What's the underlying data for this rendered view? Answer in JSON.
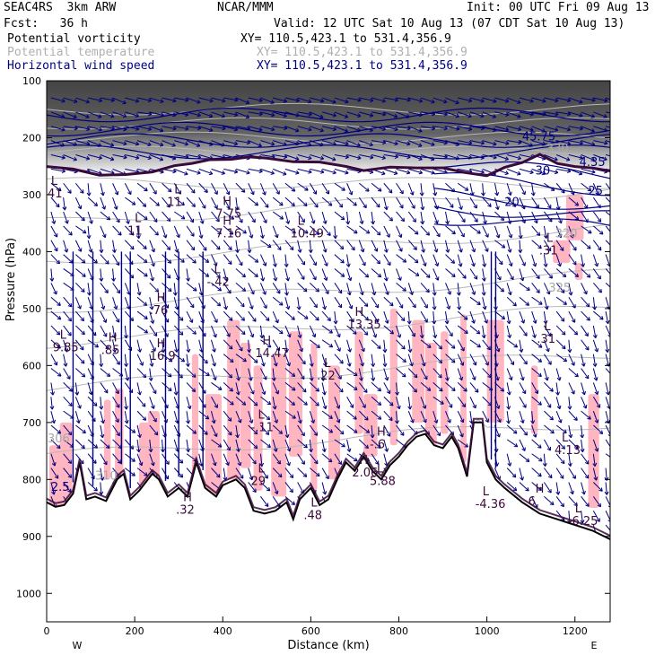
{
  "header": {
    "model": "SEAC4RS  3km ARW",
    "org": "NCAR/MMM",
    "init": "Init: 00 UTC Fri 09 Aug 13",
    "fcst": "Fcst:   36 h",
    "valid": "Valid: 12 UTC Sat 10 Aug 13 (07 CDT Sat 10 Aug 13)",
    "fields": [
      {
        "name": "Potential vorticity",
        "xy": "XY= 110.5,423.1 to 531.4,356.9"
      },
      {
        "name": "Potential temperature",
        "xy": "XY= 110.5,423.1 to 531.4,356.9"
      },
      {
        "name": "Horizontal wind speed",
        "xy": "XY= 110.5,423.1 to 531.4,356.9"
      }
    ]
  },
  "colors": {
    "pv_fill": "#ffb6c1",
    "wind": "#000080",
    "theta": "#b8b8b8",
    "tropopause": "#3a0a3a",
    "terrain": "#000000",
    "shade": "#4a4a4a"
  },
  "chart_data": {
    "type": "contour",
    "xlabel": "Distance (km)",
    "ylabel": "Pressure (hPa)",
    "xlim": [
      0,
      1280
    ],
    "ylim": [
      1050,
      100
    ],
    "xticks": [
      0,
      200,
      400,
      600,
      800,
      1000,
      1200
    ],
    "yticks": [
      100,
      200,
      300,
      400,
      500,
      600,
      700,
      800,
      900,
      1000
    ],
    "x_endpoints": [
      "W",
      "E"
    ],
    "theta_labels": [
      {
        "text": "330",
        "x": 1135,
        "p": 225
      },
      {
        "text": "325",
        "x": 1140,
        "p": 470
      },
      {
        "text": "320",
        "x": 1155,
        "p": 375
      },
      {
        "text": "310",
        "x": 110,
        "p": 800
      },
      {
        "text": "306",
        "x": 2,
        "p": 735
      }
    ],
    "wind_labels": [
      {
        "text": "20",
        "x": 1040,
        "p": 320
      },
      {
        "text": "25",
        "x": 1230,
        "p": 300
      },
      {
        "text": "30",
        "x": 1110,
        "p": 265
      },
      {
        "text": "4.35",
        "x": 1210,
        "p": 250
      },
      {
        "text": "45.75",
        "x": 1080,
        "p": 205
      },
      {
        "text": "2.5",
        "x": 10,
        "p": 820
      }
    ],
    "extrema": [
      {
        "type": "L",
        "value": ".41",
        "x": 10,
        "p": 305
      },
      {
        "type": "L",
        "value": "11",
        "x": 290,
        "p": 320
      },
      {
        "type": "H",
        "value": "7.75",
        "x": 400,
        "p": 340
      },
      {
        "type": "L",
        "value": "11",
        "x": 200,
        "p": 370
      },
      {
        "type": "H",
        "value": "7.16",
        "x": 400,
        "p": 375
      },
      {
        "type": "L",
        "value": "10.49",
        "x": 570,
        "p": 375
      },
      {
        "type": "L",
        "value": ".31",
        "x": 1135,
        "p": 405
      },
      {
        "type": "L",
        "value": "-.42",
        "x": 380,
        "p": 460
      },
      {
        "type": "H",
        "value": ".76",
        "x": 250,
        "p": 510
      },
      {
        "type": "H",
        "value": "13.35",
        "x": 700,
        "p": 535
      },
      {
        "type": "L",
        "value": ".31",
        "x": 1130,
        "p": 560
      },
      {
        "type": "L",
        "value": "9.85",
        "x": 30,
        "p": 575
      },
      {
        "type": "H",
        "value": ".85",
        "x": 140,
        "p": 580
      },
      {
        "type": "H",
        "value": "16.9",
        "x": 250,
        "p": 590
      },
      {
        "type": "H",
        "value": "14.47",
        "x": 490,
        "p": 585
      },
      {
        "type": "L",
        "value": ".22",
        "x": 630,
        "p": 625
      },
      {
        "type": "L",
        "value": "-.11",
        "x": 480,
        "p": 715
      },
      {
        "type": "H",
        "value": "-.6",
        "x": 750,
        "p": 745
      },
      {
        "type": "L",
        "value": "4.13",
        "x": 1170,
        "p": 755
      },
      {
        "type": "H",
        "value": "2.06",
        "x": 710,
        "p": 795
      },
      {
        "type": "L",
        "value": "5.88",
        "x": 750,
        "p": 810
      },
      {
        "type": "L",
        "value": "29",
        "x": 480,
        "p": 810
      },
      {
        "type": "L",
        "value": "-4.36",
        "x": 990,
        "p": 850
      },
      {
        "type": "H",
        "value": "6",
        "x": 1110,
        "p": 845
      },
      {
        "type": "H",
        "value": ".32",
        "x": 310,
        "p": 860
      },
      {
        "type": "L",
        "value": ".48",
        "x": 600,
        "p": 870
      },
      {
        "type": "L",
        "value": "-6.25",
        "x": 1200,
        "p": 880
      }
    ]
  }
}
